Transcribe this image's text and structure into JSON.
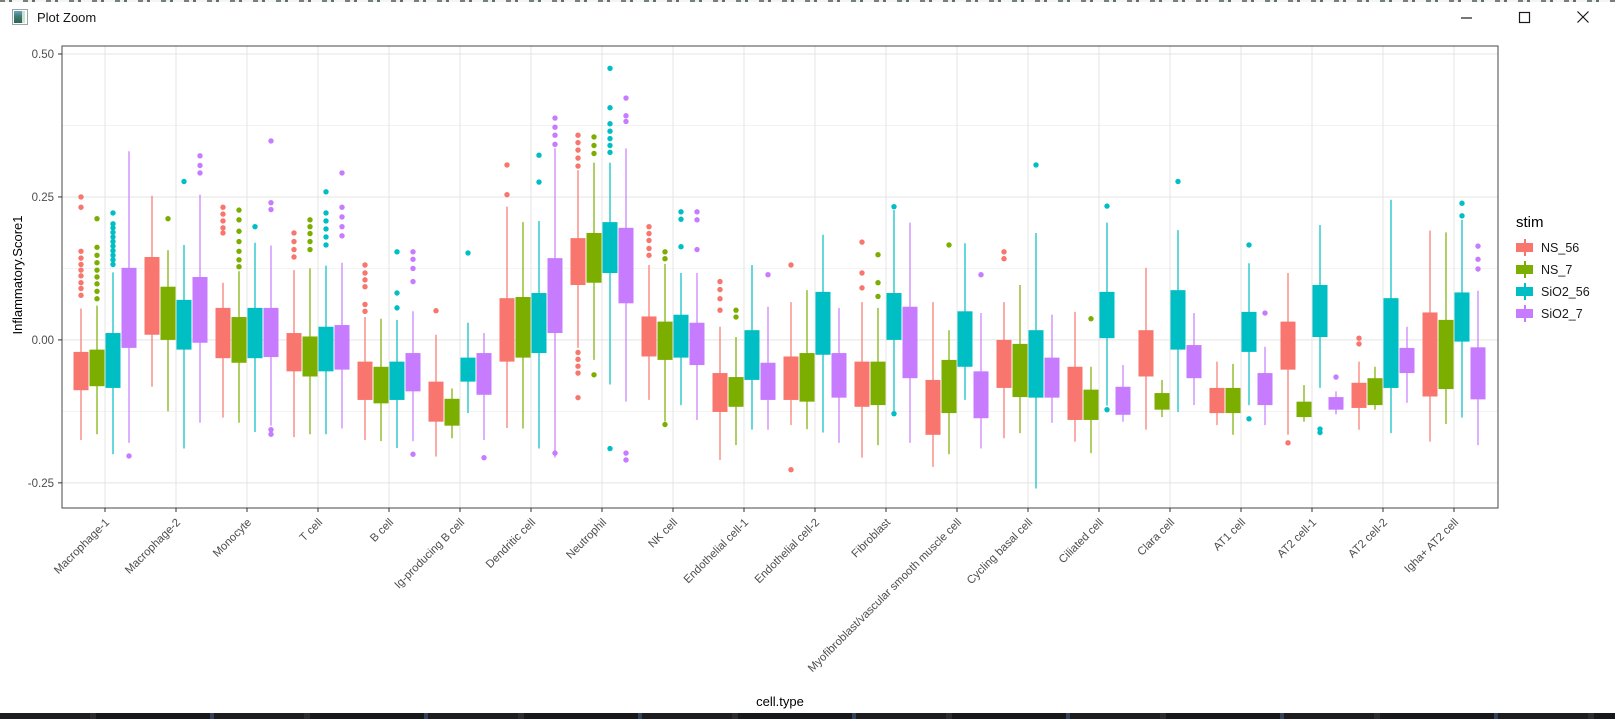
{
  "window": {
    "title": "Plot Zoom",
    "icon": "plot-thumbnail-icon",
    "controls": {
      "minimize": "minimize-icon",
      "maximize": "maximize-icon",
      "close": "close-icon"
    }
  },
  "colors": {
    "grid_major": "#e4e4e4",
    "grid_minor": "#f2f2f2",
    "panel_border": "#474747",
    "axis_text": "#4d4d4d",
    "axis_title": "#000000"
  },
  "chart_data": {
    "type": "boxplot",
    "title": "",
    "xlabel": "cell.type",
    "ylabel": "Inflammatory.Score1",
    "ylim": [
      -0.294,
      0.514
    ],
    "yticks": [
      0.5,
      0.25,
      0.0,
      -0.25
    ],
    "ytick_labels": [
      "0.50",
      "0.25",
      "0.00",
      "-0.25"
    ],
    "yminor": [
      0.375,
      0.125,
      -0.125
    ],
    "grid": true,
    "legend": {
      "title": "stim",
      "position": "right",
      "entries": [
        {
          "label": "NS_56",
          "color": "#F8766D"
        },
        {
          "label": "NS_7",
          "color": "#7CAE00"
        },
        {
          "label": "SiO2_56",
          "color": "#00BFC4"
        },
        {
          "label": "SiO2_7",
          "color": "#C77CFF"
        }
      ]
    },
    "categories": [
      "Macrophage-1",
      "Macrophage-2",
      "Monocyte",
      "T cell",
      "B cell",
      "Ig-producing B cell",
      "Dendritic cell",
      "Neutrophil",
      "NK cell",
      "Endothelial cell-1",
      "Endothelial cell-2",
      "Fibroblast",
      "Myofibroblast/vascular smooth muscle cell",
      "Cycling basal cell",
      "Ciliated cell",
      "Clara cell",
      "AT1 cell",
      "AT2 cell-1",
      "AT2 cell-2",
      "Igha+ AT2 cell"
    ],
    "series": [
      {
        "name": "NS_56",
        "color": "#F8766D",
        "boxes": [
          {
            "lo": -0.175,
            "q1": -0.088,
            "q3": -0.021,
            "hi": 0.055,
            "out": [
              0.25,
              0.232,
              0.155,
              0.143,
              0.132,
              0.122,
              0.112,
              0.1,
              0.09,
              0.078
            ]
          },
          {
            "lo": -0.082,
            "q1": 0.009,
            "q3": 0.145,
            "hi": 0.252,
            "out": []
          },
          {
            "lo": -0.136,
            "q1": -0.032,
            "q3": 0.056,
            "hi": 0.1,
            "out": [
              0.232,
              0.22,
              0.208,
              0.196,
              0.187
            ]
          },
          {
            "lo": -0.17,
            "q1": -0.055,
            "q3": 0.012,
            "hi": 0.122,
            "out": [
              0.187,
              0.172,
              0.158,
              0.145
            ]
          },
          {
            "lo": -0.175,
            "q1": -0.105,
            "q3": -0.038,
            "hi": 0.04,
            "out": [
              0.131,
              0.117,
              0.105,
              0.093,
              0.062,
              0.05
            ]
          },
          {
            "lo": -0.204,
            "q1": -0.143,
            "q3": -0.073,
            "hi": 0.009,
            "out": [
              0.051
            ]
          },
          {
            "lo": -0.154,
            "q1": -0.038,
            "q3": 0.073,
            "hi": 0.233,
            "out": [
              0.306,
              0.254
            ]
          },
          {
            "lo": -0.014,
            "q1": 0.096,
            "q3": 0.178,
            "hi": 0.297,
            "out": [
              0.358,
              0.345,
              0.332,
              0.318,
              0.304,
              -0.022,
              -0.034,
              -0.046,
              -0.058,
              -0.101
            ]
          },
          {
            "lo": -0.105,
            "q1": -0.029,
            "q3": 0.041,
            "hi": 0.131,
            "out": [
              0.198,
              0.186,
              0.174,
              0.16,
              0.148
            ]
          },
          {
            "lo": -0.21,
            "q1": -0.126,
            "q3": -0.058,
            "hi": 0.023,
            "out": [
              0.102,
              0.088,
              0.072,
              0.052
            ]
          },
          {
            "lo": -0.149,
            "q1": -0.105,
            "q3": -0.029,
            "hi": 0.066,
            "out": [
              0.131,
              -0.227
            ]
          },
          {
            "lo": -0.206,
            "q1": -0.117,
            "q3": -0.038,
            "hi": 0.066,
            "out": [
              0.171,
              0.117,
              0.091
            ]
          },
          {
            "lo": -0.222,
            "q1": -0.166,
            "q3": -0.07,
            "hi": 0.066,
            "out": []
          },
          {
            "lo": -0.172,
            "q1": -0.084,
            "q3": 0.0,
            "hi": 0.066,
            "out": [
              0.154,
              0.142
            ]
          },
          {
            "lo": -0.178,
            "q1": -0.14,
            "q3": -0.047,
            "hi": 0.049,
            "out": []
          },
          {
            "lo": -0.157,
            "q1": -0.064,
            "q3": 0.017,
            "hi": 0.126,
            "out": []
          },
          {
            "lo": -0.149,
            "q1": -0.128,
            "q3": -0.084,
            "hi": -0.038,
            "out": []
          },
          {
            "lo": -0.166,
            "q1": -0.052,
            "q3": 0.032,
            "hi": 0.117,
            "out": [
              -0.18
            ]
          },
          {
            "lo": -0.157,
            "q1": -0.119,
            "q3": -0.075,
            "hi": -0.038,
            "out": [
              0.003,
              -0.007
            ]
          },
          {
            "lo": -0.178,
            "q1": -0.099,
            "q3": 0.048,
            "hi": 0.191,
            "out": []
          }
        ]
      },
      {
        "name": "NS_7",
        "color": "#7CAE00",
        "boxes": [
          {
            "lo": -0.165,
            "q1": -0.081,
            "q3": -0.017,
            "hi": 0.06,
            "out": [
              0.212,
              0.162,
              0.148,
              0.135,
              0.122,
              0.11,
              0.098,
              0.085,
              0.072
            ]
          },
          {
            "lo": -0.125,
            "q1": 0.0,
            "q3": 0.093,
            "hi": 0.157,
            "out": [
              0.212
            ]
          },
          {
            "lo": -0.145,
            "q1": -0.04,
            "q3": 0.04,
            "hi": 0.12,
            "out": [
              0.227,
              0.21,
              0.19,
              0.172,
              0.155,
              0.14,
              0.128
            ]
          },
          {
            "lo": -0.165,
            "q1": -0.064,
            "q3": 0.006,
            "hi": 0.125,
            "out": [
              0.21,
              0.198,
              0.186,
              0.172,
              0.158
            ]
          },
          {
            "lo": -0.177,
            "q1": -0.111,
            "q3": -0.047,
            "hi": 0.037,
            "out": []
          },
          {
            "lo": -0.172,
            "q1": -0.15,
            "q3": -0.103,
            "hi": -0.085,
            "out": []
          },
          {
            "lo": -0.155,
            "q1": -0.031,
            "q3": 0.075,
            "hi": 0.206,
            "out": []
          },
          {
            "lo": -0.035,
            "q1": 0.1,
            "q3": 0.187,
            "hi": 0.31,
            "out": [
              0.355,
              0.34,
              0.326,
              -0.061
            ]
          },
          {
            "lo": -0.143,
            "q1": -0.035,
            "q3": 0.032,
            "hi": 0.133,
            "out": [
              0.154,
              0.142,
              -0.148
            ]
          },
          {
            "lo": -0.184,
            "q1": -0.117,
            "q3": -0.065,
            "hi": 0.005,
            "out": [
              0.052,
              0.04
            ]
          },
          {
            "lo": -0.156,
            "q1": -0.108,
            "q3": -0.023,
            "hi": 0.087,
            "out": []
          },
          {
            "lo": -0.184,
            "q1": -0.114,
            "q3": -0.038,
            "hi": 0.056,
            "out": [
              0.149,
              0.1,
              0.076
            ]
          },
          {
            "lo": -0.2,
            "q1": -0.128,
            "q3": -0.035,
            "hi": 0.017,
            "out": [
              0.166
            ]
          },
          {
            "lo": -0.163,
            "q1": -0.1,
            "q3": -0.007,
            "hi": 0.096,
            "out": []
          },
          {
            "lo": -0.198,
            "q1": -0.14,
            "q3": -0.087,
            "hi": -0.047,
            "out": [
              0.037
            ]
          },
          {
            "lo": -0.135,
            "q1": -0.122,
            "q3": -0.093,
            "hi": -0.07,
            "out": []
          },
          {
            "lo": -0.166,
            "q1": -0.128,
            "q3": -0.084,
            "hi": -0.042,
            "out": []
          },
          {
            "lo": -0.143,
            "q1": -0.135,
            "q3": -0.108,
            "hi": -0.079,
            "out": []
          },
          {
            "lo": -0.122,
            "q1": -0.114,
            "q3": -0.067,
            "hi": -0.047,
            "out": []
          },
          {
            "lo": -0.147,
            "q1": -0.086,
            "q3": 0.035,
            "hi": 0.188,
            "out": []
          }
        ]
      },
      {
        "name": "SiO2_56",
        "color": "#00BFC4",
        "boxes": [
          {
            "lo": -0.2,
            "q1": -0.084,
            "q3": 0.012,
            "hi": 0.118,
            "out": [
              0.222,
              0.203,
              0.196,
              0.188,
              0.18,
              0.172,
              0.164,
              0.156,
              0.148,
              0.14,
              0.132
            ]
          },
          {
            "lo": -0.19,
            "q1": -0.017,
            "q3": 0.07,
            "hi": 0.166,
            "out": [
              0.277
            ]
          },
          {
            "lo": -0.161,
            "q1": -0.032,
            "q3": 0.056,
            "hi": 0.17,
            "out": [
              0.198
            ]
          },
          {
            "lo": -0.165,
            "q1": -0.055,
            "q3": 0.023,
            "hi": 0.13,
            "out": [
              0.259,
              0.222,
              0.208,
              0.194,
              0.18,
              0.166
            ]
          },
          {
            "lo": -0.189,
            "q1": -0.105,
            "q3": -0.038,
            "hi": 0.035,
            "out": [
              0.154,
              0.082,
              0.056
            ]
          },
          {
            "lo": -0.128,
            "q1": -0.073,
            "q3": -0.031,
            "hi": 0.03,
            "out": [
              0.152
            ]
          },
          {
            "lo": -0.19,
            "q1": -0.023,
            "q3": 0.082,
            "hi": 0.208,
            "out": [
              0.323,
              0.276
            ]
          },
          {
            "lo": -0.078,
            "q1": 0.117,
            "q3": 0.206,
            "hi": 0.31,
            "out": [
              0.475,
              0.406,
              0.378,
              0.365,
              0.352,
              0.34,
              0.328,
              -0.19
            ]
          },
          {
            "lo": -0.114,
            "q1": -0.031,
            "q3": 0.044,
            "hi": 0.117,
            "out": [
              0.224,
              0.211,
              0.163
            ]
          },
          {
            "lo": -0.157,
            "q1": -0.07,
            "q3": 0.017,
            "hi": 0.131,
            "out": []
          },
          {
            "lo": -0.162,
            "q1": -0.026,
            "q3": 0.084,
            "hi": 0.184,
            "out": []
          },
          {
            "lo": -0.131,
            "q1": 0.0,
            "q3": 0.082,
            "hi": 0.227,
            "out": [
              0.233,
              -0.129
            ]
          },
          {
            "lo": -0.105,
            "q1": -0.047,
            "q3": 0.05,
            "hi": 0.169,
            "out": []
          },
          {
            "lo": -0.26,
            "q1": -0.101,
            "q3": 0.017,
            "hi": 0.187,
            "out": [
              0.306
            ]
          },
          {
            "lo": -0.115,
            "q1": 0.003,
            "q3": 0.084,
            "hi": 0.205,
            "out": [
              0.234,
              -0.122
            ]
          },
          {
            "lo": -0.126,
            "q1": -0.017,
            "q3": 0.087,
            "hi": 0.192,
            "out": [
              0.277
            ]
          },
          {
            "lo": -0.114,
            "q1": -0.021,
            "q3": 0.049,
            "hi": 0.134,
            "out": [
              0.166,
              -0.138
            ]
          },
          {
            "lo": -0.084,
            "q1": 0.005,
            "q3": 0.096,
            "hi": 0.201,
            "out": [
              -0.156,
              -0.162
            ]
          },
          {
            "lo": -0.163,
            "q1": -0.084,
            "q3": 0.073,
            "hi": 0.245,
            "out": []
          },
          {
            "lo": -0.136,
            "q1": -0.003,
            "q3": 0.083,
            "hi": 0.21,
            "out": [
              0.239,
              0.217
            ]
          }
        ]
      },
      {
        "name": "SiO2_7",
        "color": "#C77CFF",
        "boxes": [
          {
            "lo": -0.18,
            "q1": -0.014,
            "q3": 0.126,
            "hi": 0.33,
            "out": [
              -0.203
            ]
          },
          {
            "lo": -0.145,
            "q1": -0.005,
            "q3": 0.11,
            "hi": 0.254,
            "out": [
              0.322,
              0.305,
              0.292
            ]
          },
          {
            "lo": -0.15,
            "q1": -0.03,
            "q3": 0.056,
            "hi": 0.165,
            "out": [
              0.348,
              0.24,
              0.228,
              -0.157,
              -0.165
            ]
          },
          {
            "lo": -0.155,
            "q1": -0.052,
            "q3": 0.026,
            "hi": 0.135,
            "out": [
              0.292,
              0.232,
              0.215,
              0.198,
              0.182
            ]
          },
          {
            "lo": -0.177,
            "q1": -0.09,
            "q3": -0.023,
            "hi": 0.05,
            "out": [
              0.154,
              0.141,
              0.125,
              0.102,
              -0.2
            ]
          },
          {
            "lo": -0.175,
            "q1": -0.096,
            "q3": -0.023,
            "hi": 0.012,
            "out": [
              -0.206
            ]
          },
          {
            "lo": -0.206,
            "q1": 0.012,
            "q3": 0.143,
            "hi": 0.335,
            "out": [
              0.388,
              0.372,
              0.358,
              0.342,
              -0.198
            ]
          },
          {
            "lo": -0.108,
            "q1": 0.064,
            "q3": 0.196,
            "hi": 0.335,
            "out": [
              0.423,
              0.392,
              0.382,
              -0.198,
              -0.21
            ]
          },
          {
            "lo": -0.14,
            "q1": -0.044,
            "q3": 0.03,
            "hi": 0.117,
            "out": [
              0.224,
              0.21,
              0.158
            ]
          },
          {
            "lo": -0.157,
            "q1": -0.105,
            "q3": -0.04,
            "hi": 0.058,
            "out": [
              0.114
            ]
          },
          {
            "lo": -0.18,
            "q1": -0.101,
            "q3": -0.023,
            "hi": 0.056,
            "out": []
          },
          {
            "lo": -0.18,
            "q1": -0.067,
            "q3": 0.058,
            "hi": 0.205,
            "out": []
          },
          {
            "lo": -0.19,
            "q1": -0.137,
            "q3": -0.055,
            "hi": 0.047,
            "out": [
              0.114
            ]
          },
          {
            "lo": -0.145,
            "q1": -0.101,
            "q3": -0.031,
            "hi": 0.044,
            "out": []
          },
          {
            "lo": -0.143,
            "q1": -0.131,
            "q3": -0.082,
            "hi": -0.044,
            "out": []
          },
          {
            "lo": -0.114,
            "q1": -0.067,
            "q3": -0.009,
            "hi": 0.047,
            "out": []
          },
          {
            "lo": -0.149,
            "q1": -0.114,
            "q3": -0.058,
            "hi": -0.012,
            "out": [
              0.047
            ]
          },
          {
            "lo": -0.13,
            "q1": -0.122,
            "q3": -0.1,
            "hi": -0.09,
            "out": [
              -0.065
            ]
          },
          {
            "lo": -0.11,
            "q1": -0.058,
            "q3": -0.014,
            "hi": 0.023,
            "out": []
          },
          {
            "lo": -0.184,
            "q1": -0.104,
            "q3": -0.013,
            "hi": 0.086,
            "out": [
              0.164,
              0.141,
              0.124
            ]
          }
        ]
      }
    ]
  }
}
